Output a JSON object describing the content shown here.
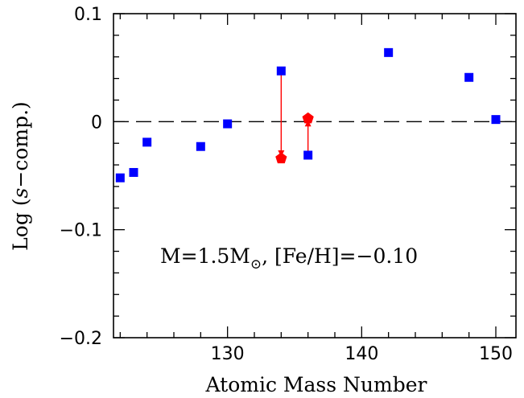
{
  "chart_data": {
    "type": "scatter",
    "xlabel": "Atomic Mass Number",
    "ylabel": "Log (s−comp.)",
    "ylabel_prefix": "Log (",
    "ylabel_italic": "s",
    "ylabel_suffix": "−comp.)",
    "xlim": [
      121.5,
      151.5
    ],
    "ylim": [
      -0.2,
      0.1
    ],
    "x_ticks": [
      130,
      140,
      150
    ],
    "x_tick_labels": [
      "130",
      "140",
      "150"
    ],
    "y_ticks": [
      0.1,
      0,
      -0.1,
      -0.2
    ],
    "y_tick_labels": [
      "0.1",
      "0",
      "−0.1",
      "−0.2"
    ],
    "x_minor_step": 2,
    "y_minor_step": 0.02,
    "grid": false,
    "reference_line": {
      "y": 0,
      "style": "dashed"
    },
    "annotation": {
      "text_prefix": "M=1.5M",
      "sun_symbol": "⊙",
      "text_suffix": ",  [Fe/H]=−0.10"
    },
    "series": [
      {
        "marker": "square",
        "color": "#0000ff",
        "points": [
          {
            "x": 122,
            "y": -0.052
          },
          {
            "x": 123,
            "y": -0.047
          },
          {
            "x": 124,
            "y": -0.019
          },
          {
            "x": 128,
            "y": -0.023
          },
          {
            "x": 130,
            "y": -0.002
          },
          {
            "x": 134,
            "y": 0.047
          },
          {
            "x": 136,
            "y": -0.031
          },
          {
            "x": 142,
            "y": 0.064
          },
          {
            "x": 148,
            "y": 0.041
          },
          {
            "x": 150,
            "y": 0.002
          }
        ]
      },
      {
        "marker": "pentagon",
        "color": "#ff0000",
        "points": [
          {
            "x": 134,
            "y": -0.034
          },
          {
            "x": 136,
            "y": 0.003
          }
        ]
      }
    ],
    "arrows": [
      {
        "x": 134,
        "y_from": 0.047,
        "y_to": -0.034,
        "color": "#ff0000"
      },
      {
        "x": 136,
        "y_from": -0.031,
        "y_to": 0.003,
        "color": "#ff0000"
      }
    ]
  }
}
